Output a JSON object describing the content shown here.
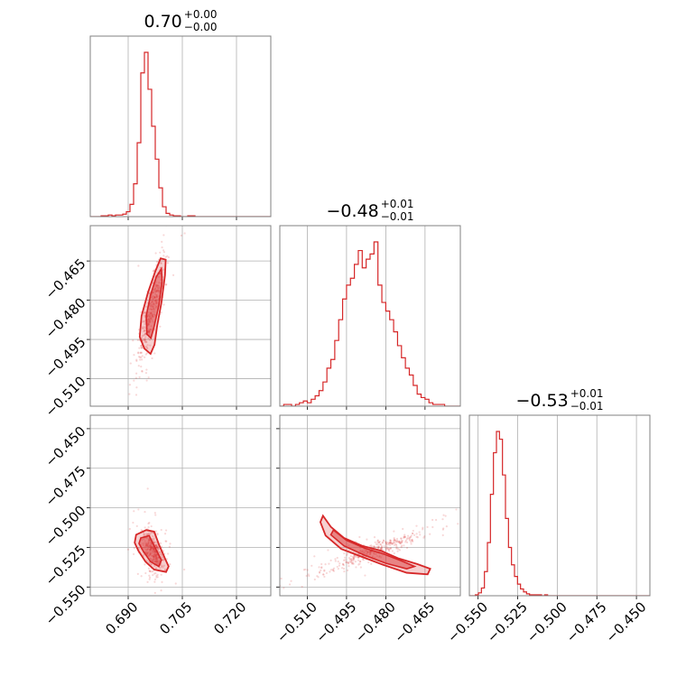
{
  "chart_data": {
    "type": "corner",
    "color": "#d62728",
    "grid": true,
    "params": [
      {
        "title": {
          "median": "0.70",
          "plus": "+0.00",
          "minus": "−0.00"
        },
        "ticks": [
          0.69,
          0.705,
          0.72
        ],
        "tick_labels": [
          "0.690",
          "0.705",
          "0.720"
        ],
        "range": [
          0.6795,
          0.7295
        ]
      },
      {
        "title": {
          "median": "−0.48",
          "plus": "+0.01",
          "minus": "−0.01"
        },
        "ticks": [
          -0.51,
          -0.495,
          -0.48,
          -0.465
        ],
        "tick_labels": [
          "−0.510",
          "−0.495",
          "−0.480",
          "−0.465"
        ],
        "range": [
          -0.5205,
          -0.4515
        ]
      },
      {
        "title": {
          "median": "−0.53",
          "plus": "+0.01",
          "minus": "−0.01"
        },
        "ticks": [
          -0.55,
          -0.525,
          -0.5,
          -0.475,
          -0.45
        ],
        "tick_labels": [
          "−0.550",
          "−0.525",
          "−0.500",
          "−0.475",
          "−0.450"
        ],
        "range": [
          -0.5555,
          -0.4415
        ]
      }
    ],
    "histograms": [
      {
        "param": 0,
        "bin_start": 0.6795,
        "bin_width": 0.001,
        "counts": [
          0,
          0,
          0,
          1,
          1,
          2,
          1,
          2,
          2,
          3,
          6,
          15,
          40,
          90,
          175,
          200,
          155,
          110,
          70,
          35,
          12,
          4,
          2,
          1,
          1,
          0,
          0,
          1,
          1,
          0,
          0,
          0,
          0,
          0,
          0,
          0,
          0,
          0,
          0,
          0,
          0,
          0,
          0,
          0,
          0,
          0,
          0,
          0,
          0,
          0
        ]
      },
      {
        "param": 1,
        "bin_start": -0.5205,
        "bin_width": 0.0015,
        "counts": [
          0,
          1,
          1,
          0,
          1,
          2,
          3,
          2,
          4,
          6,
          9,
          14,
          22,
          27,
          38,
          50,
          62,
          70,
          74,
          82,
          90,
          80,
          85,
          88,
          95,
          70,
          60,
          55,
          50,
          43,
          35,
          28,
          22,
          18,
          12,
          7,
          5,
          4,
          2,
          1,
          1,
          1,
          0,
          0,
          0,
          0
        ]
      },
      {
        "param": 2,
        "bin_start": -0.5555,
        "bin_width": 0.0019,
        "counts": [
          0,
          0,
          1,
          3,
          8,
          25,
          55,
          105,
          148,
          170,
          162,
          125,
          80,
          50,
          32,
          20,
          12,
          7,
          4,
          2,
          1,
          1,
          1,
          1,
          0,
          1,
          0,
          0,
          0,
          0,
          0,
          0,
          0,
          0,
          0,
          0,
          0,
          0,
          0,
          0,
          0,
          0,
          0,
          0,
          0,
          0,
          0,
          0,
          0,
          0,
          0,
          0,
          0,
          0,
          0,
          0,
          0,
          0,
          0,
          0
        ]
      }
    ],
    "scatter_2d": [
      {
        "x": 0,
        "y": 1,
        "center": [
          0.6965,
          -0.4835
        ],
        "sd": [
          0.0017,
          0.0095
        ],
        "rho": 0.88,
        "n": 380
      },
      {
        "x": 0,
        "y": 2,
        "center": [
          0.6968,
          -0.527
        ],
        "sd": [
          0.0015,
          0.006
        ],
        "rho": -0.35,
        "n": 380
      },
      {
        "x": 1,
        "y": 2,
        "center": [
          -0.4845,
          -0.527
        ],
        "sd": [
          0.009,
          0.006
        ],
        "rho": 0.92,
        "n": 380
      }
    ],
    "contours_2d": [
      {
        "x": 0,
        "y": 1,
        "outer": [
          [
            0.6945,
            -0.4985
          ],
          [
            0.6932,
            -0.494
          ],
          [
            0.6937,
            -0.486
          ],
          [
            0.6955,
            -0.477
          ],
          [
            0.6975,
            -0.469
          ],
          [
            0.699,
            -0.464
          ],
          [
            0.7004,
            -0.4645
          ],
          [
            0.7002,
            -0.4705
          ],
          [
            0.6992,
            -0.481
          ],
          [
            0.698,
            -0.49
          ],
          [
            0.6973,
            -0.497
          ],
          [
            0.6962,
            -0.5005
          ]
        ],
        "inner": [
          [
            0.6952,
            -0.493
          ],
          [
            0.695,
            -0.486
          ],
          [
            0.6962,
            -0.478
          ],
          [
            0.6978,
            -0.471
          ],
          [
            0.6992,
            -0.468
          ],
          [
            0.6994,
            -0.473
          ],
          [
            0.6985,
            -0.482
          ],
          [
            0.6972,
            -0.49
          ],
          [
            0.6963,
            -0.4945
          ]
        ]
      },
      {
        "x": 0,
        "y": 2,
        "outer": [
          [
            0.6922,
            -0.517
          ],
          [
            0.695,
            -0.514
          ],
          [
            0.6972,
            -0.515
          ],
          [
            0.6985,
            -0.523
          ],
          [
            0.7002,
            -0.532
          ],
          [
            0.7012,
            -0.537
          ],
          [
            0.7005,
            -0.5405
          ],
          [
            0.6972,
            -0.539
          ],
          [
            0.6948,
            -0.534
          ],
          [
            0.6928,
            -0.527
          ],
          [
            0.6918,
            -0.522
          ]
        ],
        "inner": [
          [
            0.6935,
            -0.519
          ],
          [
            0.6958,
            -0.5175
          ],
          [
            0.6972,
            -0.524
          ],
          [
            0.6992,
            -0.533
          ],
          [
            0.6985,
            -0.537
          ],
          [
            0.6962,
            -0.534
          ],
          [
            0.6942,
            -0.5275
          ],
          [
            0.693,
            -0.5225
          ]
        ]
      },
      {
        "x": 1,
        "y": 2,
        "outer": [
          [
            -0.504,
            -0.505
          ],
          [
            -0.501,
            -0.512
          ],
          [
            -0.496,
            -0.519
          ],
          [
            -0.489,
            -0.524
          ],
          [
            -0.482,
            -0.527
          ],
          [
            -0.475,
            -0.532
          ],
          [
            -0.468,
            -0.5355
          ],
          [
            -0.463,
            -0.5385
          ],
          [
            -0.464,
            -0.542
          ],
          [
            -0.472,
            -0.541
          ],
          [
            -0.481,
            -0.536
          ],
          [
            -0.489,
            -0.531
          ],
          [
            -0.497,
            -0.526
          ],
          [
            -0.503,
            -0.5175
          ],
          [
            -0.505,
            -0.509
          ]
        ],
        "inner": [
          [
            -0.5,
            -0.514
          ],
          [
            -0.495,
            -0.5205
          ],
          [
            -0.488,
            -0.5255
          ],
          [
            -0.481,
            -0.529
          ],
          [
            -0.474,
            -0.5335
          ],
          [
            -0.469,
            -0.537
          ],
          [
            -0.472,
            -0.5385
          ],
          [
            -0.48,
            -0.535
          ],
          [
            -0.488,
            -0.53
          ],
          [
            -0.496,
            -0.524
          ],
          [
            -0.501,
            -0.517
          ]
        ]
      }
    ]
  }
}
